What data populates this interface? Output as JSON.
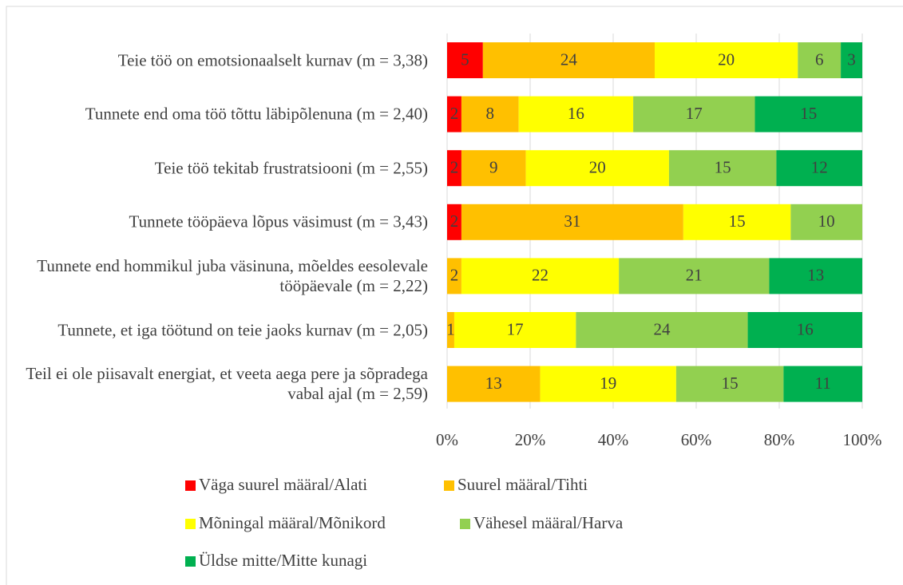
{
  "chart_data": {
    "type": "bar",
    "orientation": "horizontal",
    "stacking": "percent",
    "categories": [
      "Teie töö on emotsionaalselt kurnav (m = 3,38)",
      "Tunnete end oma töö tõttu läbipõlenuna (m = 2,40)",
      "Teie töö tekitab frustratsiooni (m = 2,55)",
      "Tunnete tööpäeva lõpus väsimust (m = 3,43)",
      "Tunnete end hommikul juba väsinuna, mõeldes eesolevale tööpäevale (m = 2,22)",
      "Tunnete, et iga töötund on teie jaoks kurnav (m = 2,05)",
      "Teil ei ole piisavalt energiat, et veeta aega pere ja sõpradega vabal ajal (m = 2,59)"
    ],
    "series": [
      {
        "name": "Väga suurel määral/Alati",
        "color": "#ff0000",
        "values": [
          5,
          2,
          2,
          2,
          null,
          null,
          null
        ]
      },
      {
        "name": "Suurel määral/Tihti",
        "color": "#ffc000",
        "values": [
          24,
          8,
          9,
          31,
          2,
          1,
          13
        ]
      },
      {
        "name": "Mõningal määral/Mõnikord",
        "color": "#ffff00",
        "values": [
          20,
          16,
          20,
          15,
          22,
          17,
          19
        ]
      },
      {
        "name": "Vähesel määral/Harva",
        "color": "#92d050",
        "values": [
          6,
          17,
          15,
          10,
          21,
          24,
          15
        ]
      },
      {
        "name": "Üldse mitte/Mitte kunagi",
        "color": "#00b050",
        "values": [
          3,
          15,
          12,
          null,
          13,
          16,
          11
        ]
      }
    ],
    "xlim": [
      0,
      100
    ],
    "xticks": [
      {
        "value": 0,
        "label": "0%"
      },
      {
        "value": 20,
        "label": "20%"
      },
      {
        "value": 40,
        "label": "40%"
      },
      {
        "value": 60,
        "label": "60%"
      },
      {
        "value": 80,
        "label": "80%"
      },
      {
        "value": 100,
        "label": "100%"
      }
    ],
    "grid": true,
    "legend": "bottom"
  }
}
